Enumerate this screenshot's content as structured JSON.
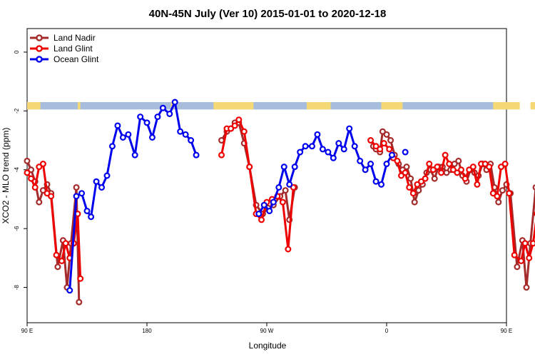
{
  "chart_data": {
    "type": "line",
    "title": "40N-45N July (Ver 10)   2015-01-01 to 2020-12-18",
    "xlabel": "Longitude",
    "ylabel": "XCO2 - MLO trend (ppm)",
    "xlim": [
      90,
      450
    ],
    "ylim": [
      -9.2,
      0.8
    ],
    "x_ticks": [
      {
        "value": 90,
        "label": "90 E"
      },
      {
        "value": 180,
        "label": "180"
      },
      {
        "value": 270,
        "label": "90 W"
      },
      {
        "value": 360,
        "label": "0"
      },
      {
        "value": 450,
        "label": "90 E"
      },
      {
        "value": 540,
        "label": "180"
      }
    ],
    "y_ticks": [
      0,
      -2,
      -4,
      -6,
      -8
    ],
    "land_band": {
      "y_range": [
        -1.95,
        -1.7
      ],
      "land_color": "#f6d977",
      "ocean_color": "#a6bddb"
    },
    "legend": {
      "position": "top-left"
    },
    "series": [
      {
        "name": "Land Nadir",
        "color": "#a52a2a",
        "points": [
          [
            90,
            -3.7
          ],
          [
            93,
            -4.0
          ],
          [
            96,
            -4.4
          ],
          [
            99,
            -5.1
          ],
          [
            102,
            -4.7
          ],
          [
            105,
            -4.5
          ],
          [
            108,
            -4.8
          ],
          [
            113,
            -7.3
          ],
          [
            117,
            -6.4
          ],
          [
            120,
            -8.0
          ],
          [
            123,
            -6.5
          ],
          [
            127,
            -4.6
          ],
          [
            129,
            -8.5
          ],
          null,
          [
            236,
            -3.0
          ],
          [
            240,
            -2.7
          ],
          [
            243,
            -2.6
          ],
          [
            246,
            -2.4
          ],
          [
            249,
            -2.4
          ],
          [
            253,
            -3.1
          ],
          [
            257,
            -3.9
          ],
          [
            262,
            -5.2
          ],
          [
            267,
            -5.5
          ],
          [
            271,
            -5.3
          ],
          [
            275,
            -5.2
          ],
          [
            280,
            -4.9
          ],
          [
            284,
            -4.7
          ],
          [
            287,
            -5.7
          ],
          [
            291,
            -4.6
          ],
          null,
          [
            350,
            -3.2
          ],
          [
            352,
            -3.3
          ],
          [
            355,
            -3.4
          ],
          [
            357,
            -2.7
          ],
          [
            360,
            -2.8
          ],
          [
            363,
            -3.0
          ],
          [
            366,
            -3.5
          ],
          [
            369,
            -3.8
          ],
          [
            372,
            -4.0
          ],
          [
            375,
            -3.9
          ],
          [
            378,
            -4.3
          ],
          [
            381,
            -5.1
          ],
          [
            384,
            -4.7
          ],
          [
            387,
            -4.5
          ],
          [
            390,
            -4.1
          ],
          [
            393,
            -4.0
          ],
          [
            396,
            -4.3
          ],
          [
            399,
            -3.9
          ],
          [
            402,
            -3.9
          ],
          [
            405,
            -4.1
          ],
          [
            408,
            -4.0
          ],
          [
            411,
            -3.8
          ],
          [
            414,
            -3.7
          ],
          [
            417,
            -4.2
          ],
          [
            420,
            -4.4
          ],
          [
            423,
            -4.0
          ],
          [
            426,
            -4.1
          ],
          [
            429,
            -4.2
          ],
          [
            432,
            -3.8
          ],
          [
            435,
            -4.0
          ],
          [
            438,
            -3.8
          ],
          [
            441,
            -4.6
          ],
          [
            444,
            -5.1
          ],
          [
            447,
            -4.7
          ],
          [
            450,
            -4.5
          ],
          [
            453,
            -4.8
          ],
          [
            458,
            -7.3
          ],
          [
            462,
            -6.4
          ],
          [
            465,
            -8.0
          ],
          [
            468,
            -6.5
          ],
          [
            472,
            -4.6
          ],
          [
            474,
            -8.5
          ]
        ]
      },
      {
        "name": "Land Glint",
        "color": "#ee0000",
        "points": [
          [
            90,
            -4.1
          ],
          [
            93,
            -4.3
          ],
          [
            96,
            -4.6
          ],
          [
            99,
            -3.9
          ],
          [
            102,
            -3.8
          ],
          [
            105,
            -4.8
          ],
          [
            108,
            -4.9
          ],
          [
            112,
            -6.9
          ],
          [
            116,
            -7.1
          ],
          [
            119,
            -6.5
          ],
          [
            122,
            -7.0
          ],
          [
            125,
            -6.5
          ],
          [
            128,
            -5.5
          ],
          [
            130,
            -7.7
          ],
          null,
          [
            236,
            -3.5
          ],
          [
            240,
            -2.6
          ],
          [
            243,
            -2.6
          ],
          [
            246,
            -2.5
          ],
          [
            249,
            -2.3
          ],
          [
            253,
            -2.7
          ],
          [
            257,
            -3.9
          ],
          [
            262,
            -5.5
          ],
          [
            266,
            -5.7
          ],
          [
            270,
            -5.1
          ],
          [
            274,
            -5.0
          ],
          [
            278,
            -4.9
          ],
          [
            282,
            -5.1
          ],
          [
            286,
            -6.7
          ],
          [
            290,
            -4.6
          ],
          null,
          [
            348,
            -3.0
          ],
          [
            352,
            -3.2
          ],
          [
            355,
            -3.3
          ],
          [
            358,
            -3.1
          ],
          [
            362,
            -3.3
          ],
          [
            365,
            -3.6
          ],
          [
            368,
            -3.7
          ],
          [
            371,
            -4.2
          ],
          [
            374,
            -4.1
          ],
          [
            377,
            -4.6
          ],
          [
            380,
            -4.8
          ],
          [
            383,
            -4.5
          ],
          [
            386,
            -4.4
          ],
          [
            389,
            -4.3
          ],
          [
            392,
            -3.8
          ],
          [
            395,
            -4.0
          ],
          [
            398,
            -3.9
          ],
          [
            401,
            -4.1
          ],
          [
            404,
            -3.5
          ],
          [
            407,
            -3.8
          ],
          [
            410,
            -4.0
          ],
          [
            413,
            -4.1
          ],
          [
            416,
            -4.0
          ],
          [
            419,
            -4.3
          ],
          [
            422,
            -4.0
          ],
          [
            425,
            -3.9
          ],
          [
            428,
            -4.5
          ],
          [
            431,
            -3.8
          ],
          [
            434,
            -3.8
          ],
          [
            437,
            -3.9
          ],
          [
            440,
            -4.8
          ],
          [
            443,
            -4.9
          ],
          [
            446,
            -3.9
          ],
          [
            449,
            -3.8
          ],
          [
            452,
            -4.8
          ],
          [
            456,
            -6.9
          ],
          [
            461,
            -7.1
          ],
          [
            464,
            -6.5
          ],
          [
            467,
            -7.0
          ],
          [
            470,
            -6.5
          ],
          [
            473,
            -5.5
          ],
          [
            475,
            -7.7
          ]
        ]
      },
      {
        "name": "Ocean Glint",
        "color": "#0000ee",
        "points": [
          [
            122,
            -8.1
          ],
          [
            127,
            -4.9
          ],
          [
            131,
            -4.8
          ],
          [
            135,
            -5.4
          ],
          [
            138,
            -5.6
          ],
          [
            142,
            -4.4
          ],
          [
            146,
            -4.6
          ],
          [
            150,
            -4.2
          ],
          [
            154,
            -3.2
          ],
          [
            158,
            -2.5
          ],
          [
            162,
            -2.9
          ],
          [
            166,
            -2.8
          ],
          [
            171,
            -3.5
          ],
          [
            175,
            -2.2
          ],
          [
            180,
            -2.4
          ],
          [
            184,
            -2.9
          ],
          [
            188,
            -2.2
          ],
          [
            192,
            -1.9
          ],
          [
            197,
            -2.1
          ],
          [
            201,
            -1.7
          ],
          [
            205,
            -2.7
          ],
          [
            209,
            -2.8
          ],
          [
            213,
            -3.0
          ],
          [
            217,
            -3.5
          ],
          null,
          [
            264,
            -5.5
          ],
          [
            268,
            -5.2
          ],
          [
            272,
            -5.4
          ],
          [
            275,
            -5.1
          ],
          [
            279,
            -4.6
          ],
          [
            283,
            -3.9
          ],
          [
            287,
            -4.5
          ],
          [
            291,
            -3.9
          ],
          [
            295,
            -3.4
          ],
          [
            299,
            -3.2
          ],
          [
            304,
            -3.2
          ],
          [
            308,
            -2.8
          ],
          [
            312,
            -3.3
          ],
          [
            316,
            -3.4
          ],
          [
            320,
            -3.6
          ],
          [
            324,
            -3.1
          ],
          [
            328,
            -3.3
          ],
          [
            332,
            -2.6
          ],
          [
            336,
            -3.2
          ],
          [
            340,
            -3.7
          ],
          [
            344,
            -4.0
          ],
          [
            348,
            -3.8
          ],
          [
            352,
            -4.4
          ],
          [
            356,
            -4.5
          ],
          [
            360,
            -3.8
          ],
          [
            364,
            -3.5
          ],
          null,
          [
            374,
            -3.4
          ]
        ]
      }
    ]
  }
}
